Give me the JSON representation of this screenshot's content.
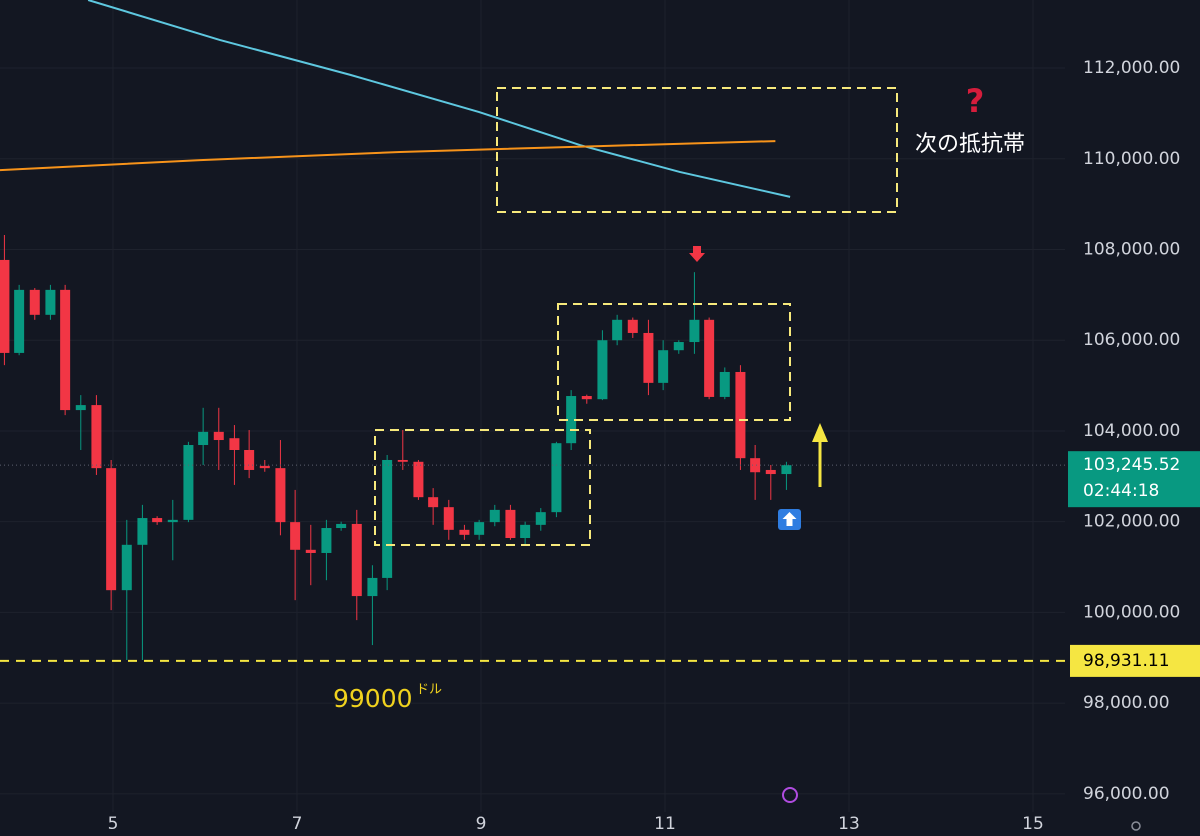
{
  "chart_data": {
    "type": "candlestick",
    "x": [
      3.82,
      3.98,
      4.15,
      4.32,
      4.48,
      4.65,
      4.82,
      4.98,
      5.15,
      5.32,
      5.48,
      5.65,
      5.82,
      5.98,
      6.15,
      6.32,
      6.48,
      6.65,
      6.82,
      6.98,
      7.15,
      7.32,
      7.48,
      7.65,
      7.82,
      7.98,
      8.15,
      8.32,
      8.48,
      8.65,
      8.82,
      8.98,
      9.15,
      9.32,
      9.48,
      9.65,
      9.82,
      9.98,
      10.15,
      10.32,
      10.48,
      10.65,
      10.82,
      10.98,
      11.15,
      11.32,
      11.48,
      11.65,
      11.82,
      11.98,
      12.15,
      12.32
    ],
    "open": [
      107770,
      105720,
      107110,
      106560,
      107110,
      104460,
      104570,
      103180,
      100490,
      101490,
      102080,
      101990,
      102040,
      103690,
      103980,
      103840,
      103580,
      103230,
      103180,
      101990,
      101380,
      101310,
      101860,
      101950,
      100360,
      100760,
      103360,
      103320,
      102540,
      102320,
      101820,
      101710,
      101990,
      102260,
      101640,
      101930,
      102210,
      103730,
      104770,
      104700,
      106000,
      106450,
      106160,
      105060,
      105780,
      105960,
      106450,
      104750,
      105300,
      103400,
      103140,
      103050
    ],
    "high": [
      108320,
      107220,
      107150,
      107220,
      107220,
      104790,
      104790,
      103360,
      102040,
      102370,
      102120,
      102480,
      103760,
      104510,
      104510,
      104130,
      104020,
      103360,
      103800,
      102700,
      101930,
      102040,
      102000,
      102260,
      101040,
      103470,
      104020,
      103360,
      102740,
      102480,
      101930,
      102040,
      102370,
      102370,
      102000,
      102300,
      103760,
      104900,
      104800,
      106220,
      106560,
      106500,
      106450,
      106000,
      106000,
      107500,
      106500,
      105400,
      105450,
      103690,
      103250,
      103320
    ],
    "low": [
      105450,
      105670,
      106450,
      106450,
      104350,
      103580,
      103030,
      100050,
      98950,
      98950,
      101930,
      101150,
      101990,
      103250,
      103140,
      102810,
      102960,
      103100,
      101700,
      100270,
      100600,
      100710,
      101800,
      99830,
      99280,
      100490,
      103140,
      102480,
      101930,
      101600,
      101600,
      101600,
      101900,
      101600,
      101500,
      101800,
      102100,
      103580,
      104600,
      104680,
      105890,
      106050,
      104790,
      104900,
      105700,
      105700,
      104700,
      104700,
      103140,
      102480,
      102480,
      102700
    ],
    "close": [
      105720,
      107110,
      106560,
      107110,
      104460,
      104570,
      103180,
      100490,
      101490,
      102080,
      101990,
      102040,
      103690,
      103980,
      103800,
      103580,
      103140,
      103180,
      101990,
      101380,
      101310,
      101860,
      101950,
      100360,
      100760,
      103360,
      103320,
      102540,
      102320,
      101820,
      101710,
      101990,
      102260,
      101640,
      101930,
      102210,
      103730,
      104770,
      104700,
      106000,
      106450,
      106160,
      105060,
      105780,
      105960,
      106450,
      104750,
      105300,
      103400,
      103090,
      103050,
      103245.52
    ],
    "colors": {
      "up": "#089981",
      "down": "#f23645"
    },
    "xlim": [
      3.772,
      15.348
    ],
    "ylim": [
      95600,
      113500
    ],
    "xticks": [
      5,
      7,
      9,
      11,
      13,
      15
    ],
    "yticks": [
      {
        "value": 96000,
        "label": "96,000.00"
      },
      {
        "value": 98000,
        "label": "98,000.00"
      },
      {
        "value": 100000,
        "label": "100,000.00"
      },
      {
        "value": 102000,
        "label": "102,000.00"
      },
      {
        "value": 104000,
        "label": "104,000.00"
      },
      {
        "value": 106000,
        "label": "106,000.00"
      },
      {
        "value": 108000,
        "label": "108,000.00"
      },
      {
        "value": 110000,
        "label": "110,000.00"
      },
      {
        "value": 112000,
        "label": "112,000.00"
      }
    ],
    "grid": true,
    "lines": [
      {
        "color": "#5ec8e0",
        "x": [
          4.73,
          6.16,
          7.58,
          8.98,
          10.08,
          11.16,
          12.36
        ],
        "values": [
          113500,
          112620,
          111850,
          111030,
          110300,
          109710,
          109160
        ]
      },
      {
        "color": "#f7931a",
        "x": [
          3.77,
          5.95,
          8.12,
          10.29,
          12.2
        ],
        "values": [
          109750,
          109970,
          110150,
          110280,
          110390
        ]
      }
    ],
    "hline": {
      "value": 98931.11,
      "label": "98,931.11",
      "color": "#f5e642"
    },
    "last_price": {
      "value": 103245.52,
      "label": "103,245.52",
      "countdown": "02:44:18"
    },
    "annotations": {
      "question": "?",
      "resistance": "次の抵抗帯",
      "support": "99000",
      "support_unit": "ドル"
    }
  }
}
